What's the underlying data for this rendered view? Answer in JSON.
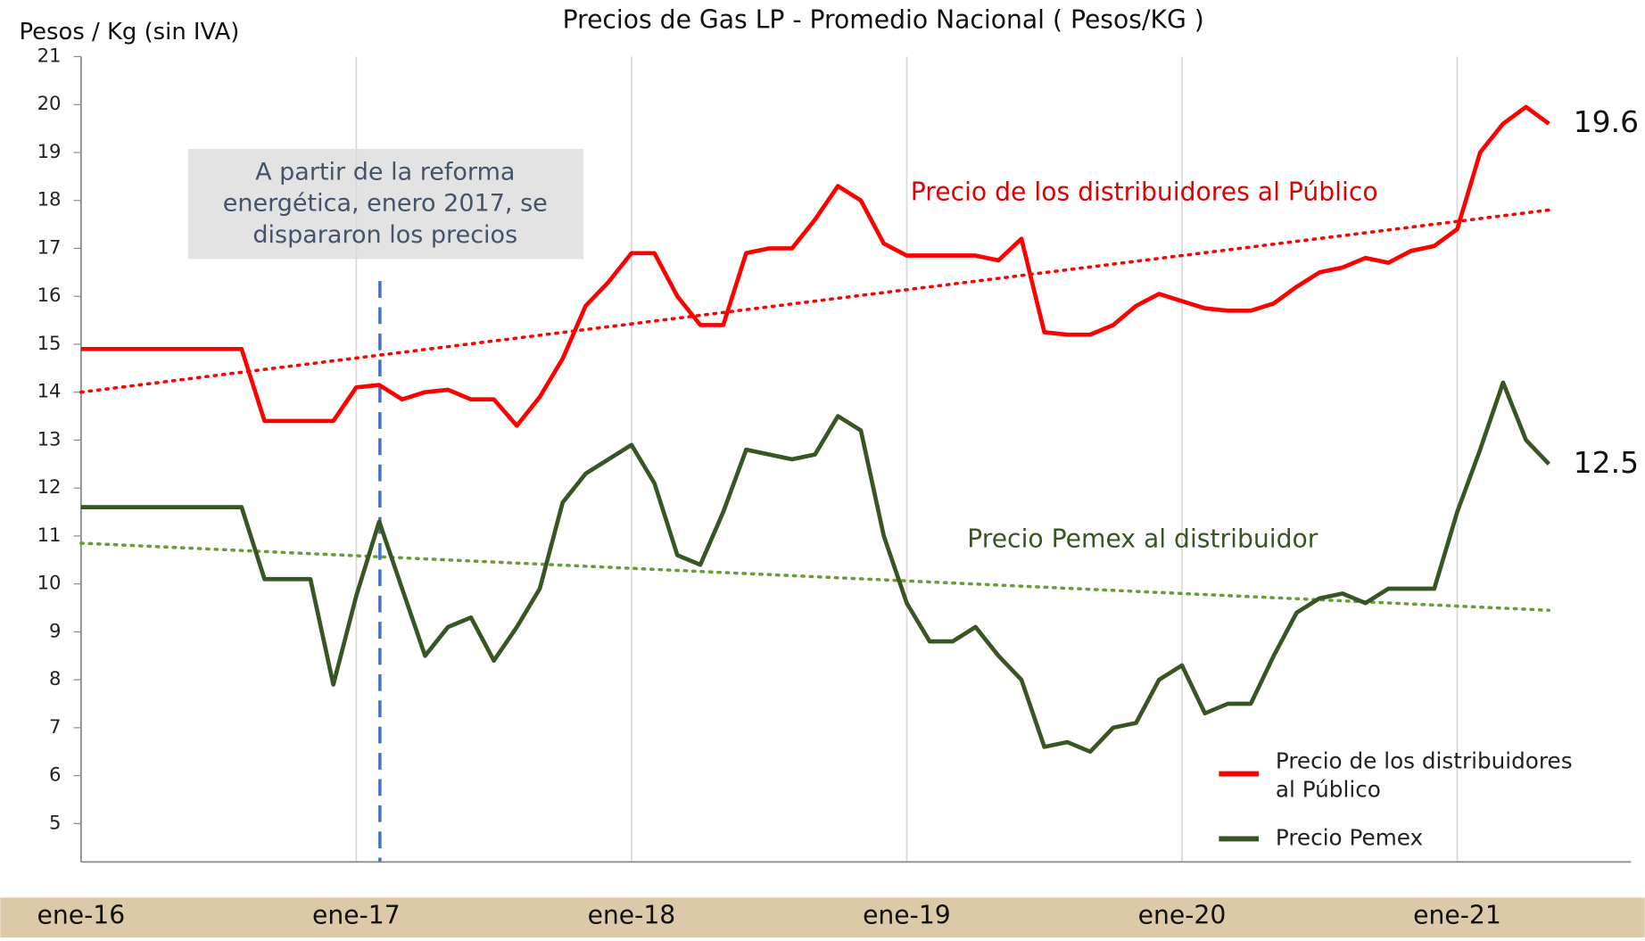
{
  "chart_data": {
    "type": "line",
    "title": "Precios de Gas LP - Promedio Nacional ( Pesos/KG )",
    "y_label": "Pesos / Kg (sin IVA)",
    "categories": [
      "ene-16",
      null,
      null,
      null,
      null,
      null,
      null,
      null,
      null,
      null,
      null,
      null,
      "ene-17",
      null,
      null,
      null,
      null,
      null,
      null,
      null,
      null,
      null,
      null,
      null,
      "ene-18",
      null,
      null,
      null,
      null,
      null,
      null,
      null,
      null,
      null,
      null,
      null,
      "ene-19",
      null,
      null,
      null,
      null,
      null,
      null,
      null,
      null,
      null,
      null,
      null,
      "ene-20",
      null,
      null,
      null,
      null,
      null,
      null,
      null,
      null,
      null,
      null,
      null,
      "ene-21",
      null,
      null,
      null,
      null
    ],
    "series": [
      {
        "name": "Precio de los distribuidores al Público",
        "color": "#ff0000",
        "values": [
          14.9,
          14.9,
          14.9,
          14.9,
          14.9,
          14.9,
          14.9,
          14.9,
          13.4,
          13.4,
          13.4,
          13.4,
          14.1,
          14.15,
          13.85,
          14.0,
          14.05,
          13.85,
          13.85,
          13.3,
          13.9,
          14.7,
          15.8,
          16.3,
          16.9,
          16.9,
          16.0,
          15.4,
          15.4,
          16.9,
          17.0,
          17.0,
          17.6,
          18.3,
          18.0,
          17.1,
          16.85,
          16.85,
          16.85,
          16.85,
          16.75,
          17.2,
          15.25,
          15.2,
          15.2,
          15.4,
          15.8,
          16.05,
          15.9,
          15.75,
          15.7,
          15.7,
          15.85,
          16.2,
          16.5,
          16.6,
          16.8,
          16.7,
          16.95,
          17.05,
          17.4,
          19.0,
          19.6,
          19.95,
          19.6
        ],
        "trend": [
          14.0,
          17.8
        ]
      },
      {
        "name": "Precio Pemex",
        "color": "#375623",
        "values": [
          11.6,
          11.6,
          11.6,
          11.6,
          11.6,
          11.6,
          11.6,
          11.6,
          10.1,
          10.1,
          10.1,
          7.9,
          9.75,
          11.3,
          9.9,
          8.5,
          9.1,
          9.3,
          8.4,
          9.1,
          9.9,
          11.7,
          12.3,
          12.6,
          12.9,
          12.1,
          10.6,
          10.4,
          11.5,
          12.8,
          12.7,
          12.6,
          12.7,
          13.5,
          13.2,
          11.0,
          9.6,
          8.8,
          8.8,
          9.1,
          8.5,
          8.0,
          6.6,
          6.7,
          6.5,
          7.0,
          7.1,
          8.0,
          8.3,
          7.3,
          7.5,
          7.5,
          8.5,
          9.4,
          9.7,
          9.8,
          9.6,
          9.9,
          9.9,
          9.9,
          11.5,
          12.8,
          14.2,
          13.0,
          12.5
        ],
        "trend": [
          10.85,
          9.45
        ]
      }
    ],
    "series_labels": [
      "Precio de los distribuidores al Público",
      "Precio Pemex al distribuidor"
    ],
    "annotation": [
      "A partir de la reforma",
      "energética, enero 2017,  se",
      "dispararon los precios"
    ],
    "ylim": [
      4.2,
      21
    ],
    "yticks": [
      5,
      6,
      7,
      8,
      9,
      10,
      11,
      12,
      13,
      14,
      15,
      16,
      17,
      18,
      19,
      20,
      21
    ],
    "grid": "x"
  }
}
